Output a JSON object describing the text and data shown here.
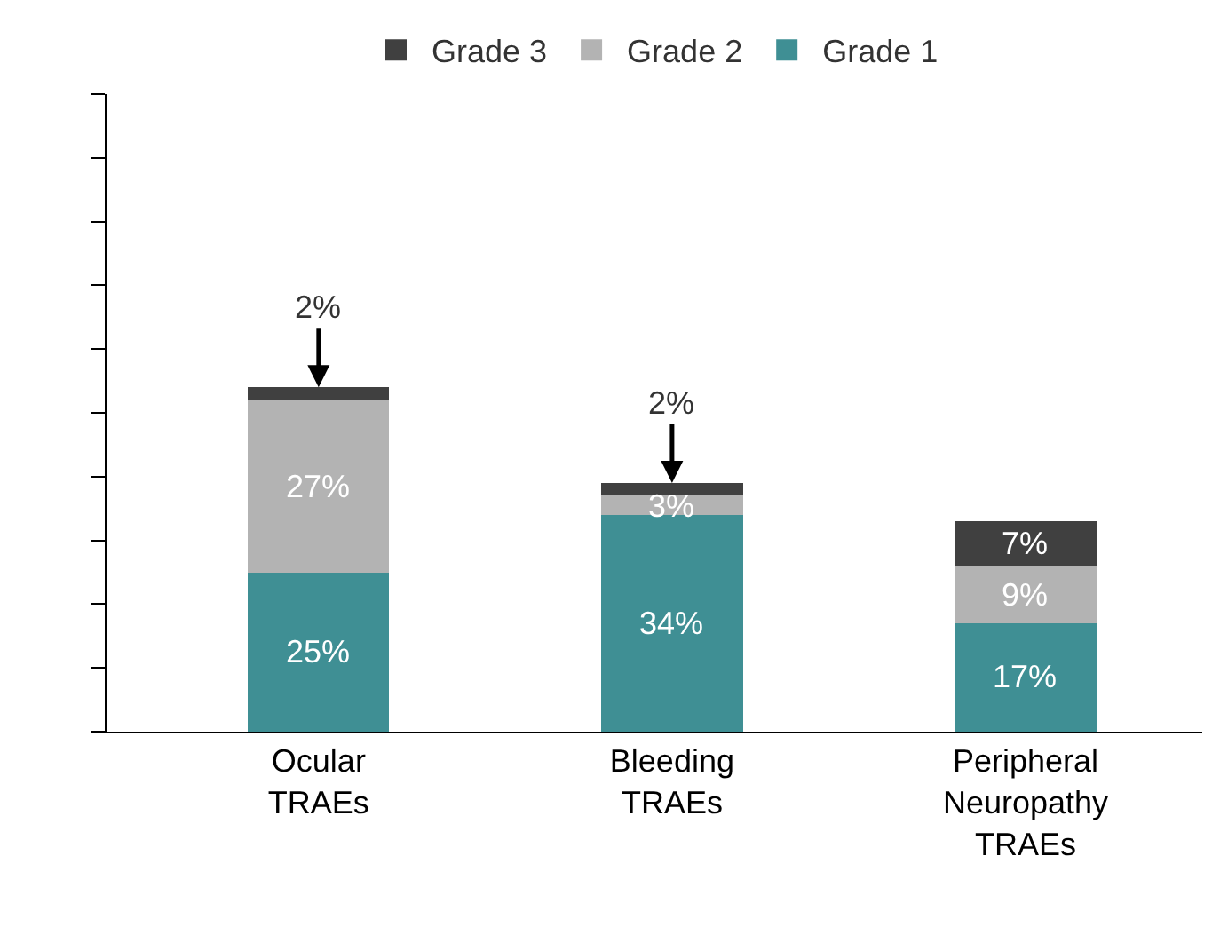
{
  "chart_data": {
    "type": "bar",
    "stacked": true,
    "categories": [
      "Ocular TRAEs",
      "Bleeding TRAEs",
      "Peripheral Neuropathy TRAEs"
    ],
    "series": [
      {
        "name": "Grade 1",
        "color": "#3f8f94",
        "values": [
          25,
          34,
          17
        ],
        "value_labels": [
          "25%",
          "34%",
          "17%"
        ]
      },
      {
        "name": "Grade 2",
        "color": "#b3b3b3",
        "values": [
          27,
          3,
          9
        ],
        "value_labels": [
          "27%",
          "3%",
          "9%"
        ]
      },
      {
        "name": "Grade 3",
        "color": "#404040",
        "values": [
          2,
          2,
          7
        ],
        "value_labels": [
          null,
          null,
          "7%"
        ]
      }
    ],
    "annotations": [
      {
        "text": "2%",
        "x": "Ocular TRAEs",
        "y": 54
      },
      {
        "text": "2%",
        "x": "Bleeding TRAEs",
        "y": 39
      }
    ],
    "ylim": [
      0,
      100
    ],
    "yticks": [
      {
        "value": 0,
        "label": null
      },
      {
        "value": 10,
        "label": null
      },
      {
        "value": 20,
        "label": null
      },
      {
        "value": 30,
        "label": null
      },
      {
        "value": 40,
        "label": null
      },
      {
        "value": 50,
        "label": null
      },
      {
        "value": 60,
        "label": null
      },
      {
        "value": 70,
        "label": null
      },
      {
        "value": 80,
        "label": null
      },
      {
        "value": 90,
        "label": null
      },
      {
        "value": 100,
        "label": null
      }
    ],
    "tick_labels": "x",
    "grid": false,
    "legend": "top"
  }
}
